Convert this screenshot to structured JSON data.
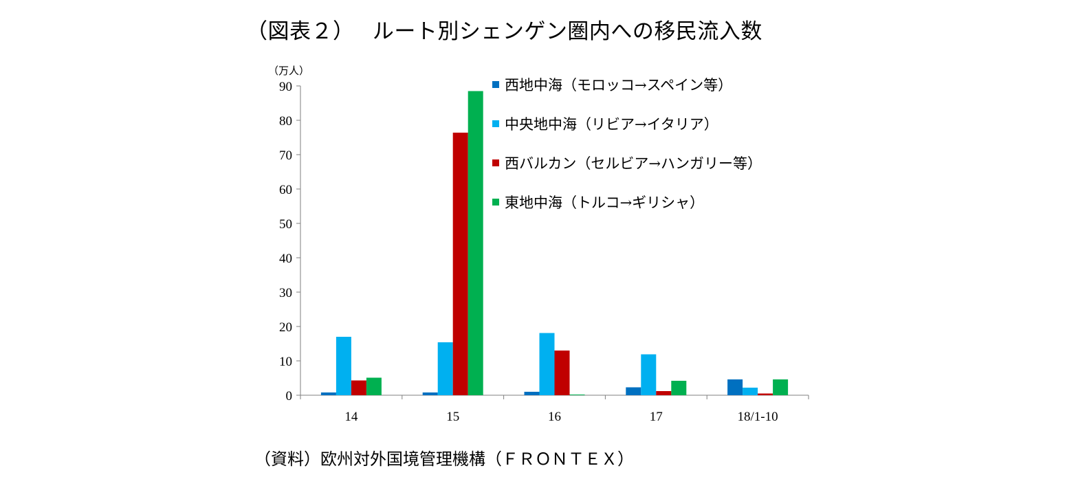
{
  "figure": {
    "title": "（図表２）　 ルート別シェンゲン圏内への移民流入数",
    "source": "（資料）欧州対外国境管理機構（ＦＲＯＮＴＥＸ）"
  },
  "chart_data": {
    "type": "bar",
    "title": "",
    "xlabel": "",
    "ylabel": "",
    "unit_label": "（万人）",
    "categories": [
      "14",
      "15",
      "16",
      "17",
      "18/1-10"
    ],
    "ylim": [
      0,
      90
    ],
    "yticks": [
      0,
      10,
      20,
      30,
      40,
      50,
      60,
      70,
      80,
      90
    ],
    "grid": false,
    "legend_position": "top-right",
    "series": [
      {
        "name": "西地中海（モロッコ→スペイン等）",
        "color": "#0070c0",
        "values": [
          0.8,
          0.8,
          1.0,
          2.3,
          4.6
        ]
      },
      {
        "name": "中央地中海（リビア→イタリア）",
        "color": "#00b0f0",
        "values": [
          17.0,
          15.4,
          18.1,
          11.9,
          2.2
        ]
      },
      {
        "name": "西バルカン（セルビア→ハンガリー等）",
        "color": "#c00000",
        "values": [
          4.3,
          76.4,
          13.0,
          1.2,
          0.5
        ]
      },
      {
        "name": "東地中海（トルコ→ギリシャ）",
        "color": "#00b050",
        "values": [
          5.1,
          88.5,
          0.2,
          4.2,
          4.6
        ]
      }
    ],
    "eastern_small_values_note": ""
  }
}
